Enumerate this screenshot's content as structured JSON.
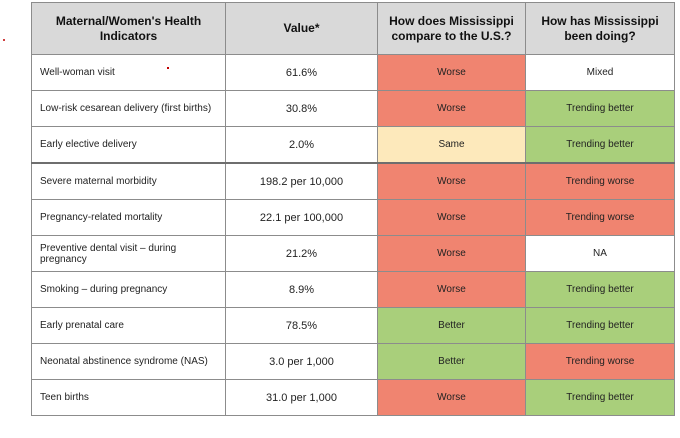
{
  "table": {
    "headers": [
      "Maternal/Women's Health Indicators",
      "Value*",
      "How does Mississippi compare to the U.S.?",
      "How has Mississippi been doing?"
    ],
    "rows": [
      {
        "indicator": "Well-woman visit",
        "value": "61.6%",
        "compare": "Worse",
        "trend": "Mixed"
      },
      {
        "indicator": "Low-risk cesarean delivery (first births)",
        "value": "30.8%",
        "compare": "Worse",
        "trend": "Trending better"
      },
      {
        "indicator": "Early elective delivery",
        "value": "2.0%",
        "compare": "Same",
        "trend": "Trending better"
      },
      {
        "indicator": "Severe maternal morbidity",
        "value": "198.2 per 10,000",
        "compare": "Worse",
        "trend": "Trending worse"
      },
      {
        "indicator": "Pregnancy-related mortality",
        "value": "22.1 per 100,000",
        "compare": "Worse",
        "trend": "Trending worse"
      },
      {
        "indicator": "Preventive dental visit – during pregnancy",
        "value": "21.2%",
        "compare": "Worse",
        "trend": "NA"
      },
      {
        "indicator": "Smoking – during pregnancy",
        "value": "8.9%",
        "compare": "Worse",
        "trend": "Trending better"
      },
      {
        "indicator": "Early prenatal care",
        "value": "78.5%",
        "compare": "Better",
        "trend": "Trending better"
      },
      {
        "indicator": "Neonatal abstinence syndrome (NAS)",
        "value": "3.0 per 1,000",
        "compare": "Better",
        "trend": "Trending worse"
      },
      {
        "indicator": "Teen births",
        "value": "31.0 per 1,000",
        "compare": "Worse",
        "trend": "Trending better"
      }
    ]
  },
  "colors": {
    "worse": "#f08470",
    "better": "#a9cf7b",
    "same": "#fde9bb",
    "header": "#d9d9d9"
  }
}
